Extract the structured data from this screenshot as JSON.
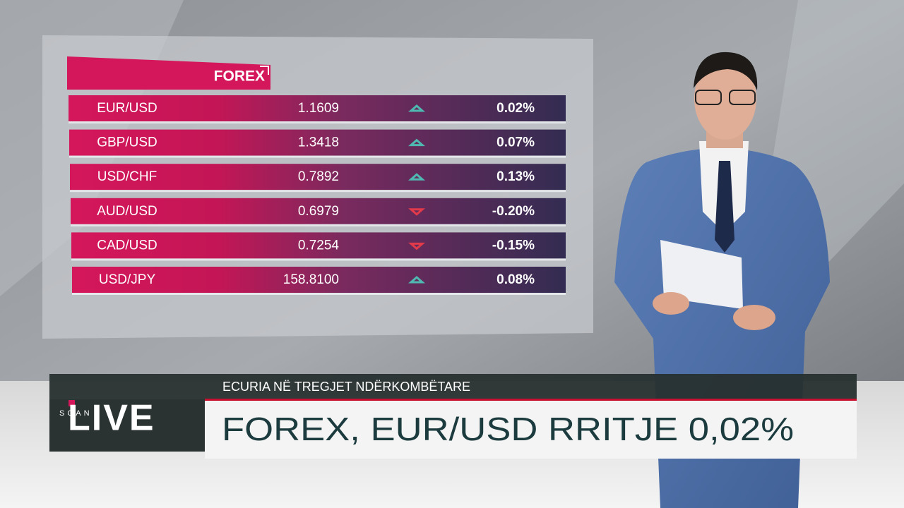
{
  "table": {
    "title": "FOREX",
    "rows": [
      {
        "pair": "EUR/USD",
        "rate": "1.1609",
        "direction": "up",
        "change": "0.02%"
      },
      {
        "pair": "GBP/USD",
        "rate": "1.3418",
        "direction": "up",
        "change": "0.07%"
      },
      {
        "pair": "USD/CHF",
        "rate": "0.7892",
        "direction": "up",
        "change": "0.13%"
      },
      {
        "pair": "AUD/USD",
        "rate": "0.6979",
        "direction": "down",
        "change": "-0.20%"
      },
      {
        "pair": "CAD/USD",
        "rate": "0.7254",
        "direction": "down",
        "change": "-0.15%"
      },
      {
        "pair": "USD/JPY",
        "rate": "158.8100",
        "direction": "up",
        "change": "0.08%"
      }
    ]
  },
  "lower_third": {
    "logo_small": "SCAN",
    "logo": "LIVE",
    "subtitle": "ECURIA NË TREGJET NDËRKOMBËTARE",
    "headline": "FOREX, EUR/USD RRITJE 0,02%"
  }
}
